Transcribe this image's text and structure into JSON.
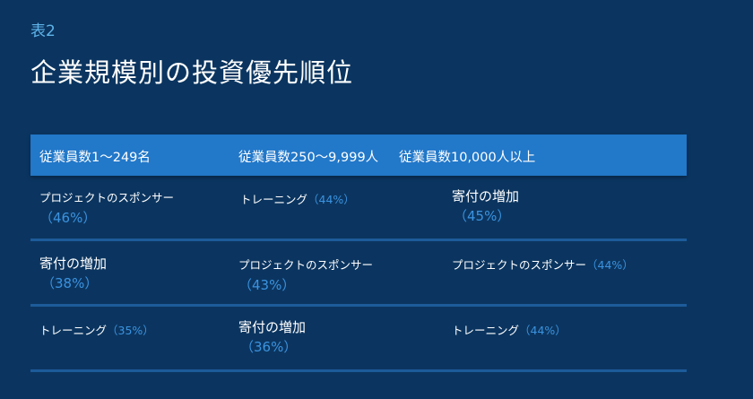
{
  "label": "表2",
  "title": "企業規模別の投資優先順位",
  "colors": {
    "background": "#0b3560",
    "header": "#2278c9",
    "percent": "#3b93e0",
    "divider": "#1d5b9a"
  },
  "headers": [
    "従業員数1～249名",
    "従業員数250～9,999人",
    "従業員数10,000人以上"
  ],
  "rows": [
    [
      {
        "item": "プロジェクトのスポンサー",
        "pct": "（46%）"
      },
      {
        "item": "トレーニング",
        "pct": "（44%）"
      },
      {
        "item": "寄付の増加",
        "pct": "（45%）"
      }
    ],
    [
      {
        "item": "寄付の増加",
        "pct": "（38%）"
      },
      {
        "item": "プロジェクトのスポンサー",
        "pct": "（43%）"
      },
      {
        "item": "プロジェクトのスポンサー",
        "pct": "（44%）"
      }
    ],
    [
      {
        "item": "トレーニング",
        "pct": "（35%）"
      },
      {
        "item": "寄付の増加",
        "pct": "（36%）"
      },
      {
        "item": "トレーニング",
        "pct": "（44%）"
      }
    ]
  ]
}
